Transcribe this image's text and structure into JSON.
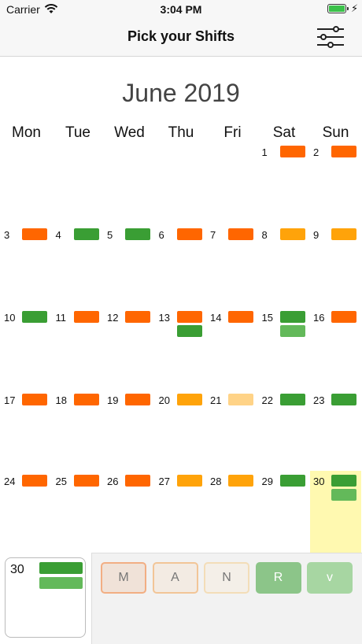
{
  "status": {
    "carrier": "Carrier",
    "time": "3:04 PM"
  },
  "nav": {
    "title": "Pick your Shifts",
    "filter_icon": "sliders-icon"
  },
  "calendar": {
    "month": "June 2019",
    "weekdays": [
      "Mon",
      "Tue",
      "Wed",
      "Thu",
      "Fri",
      "Sat",
      "Sun"
    ],
    "colors": {
      "orange": "#ff6600",
      "amber": "#ffa30a",
      "peach": "#ffd387",
      "green": "#3a9e34",
      "lightgreen": "#63b95a",
      "today": "#fff9b0"
    },
    "days": [
      {
        "d": "1",
        "shifts": [
          "orange"
        ]
      },
      {
        "d": "2",
        "shifts": [
          "orange"
        ]
      },
      {
        "d": "3",
        "shifts": [
          "orange"
        ]
      },
      {
        "d": "4",
        "shifts": [
          "green"
        ]
      },
      {
        "d": "5",
        "shifts": [
          "green"
        ]
      },
      {
        "d": "6",
        "shifts": [
          "orange"
        ]
      },
      {
        "d": "7",
        "shifts": [
          "orange"
        ]
      },
      {
        "d": "8",
        "shifts": [
          "amber"
        ]
      },
      {
        "d": "9",
        "shifts": [
          "amber"
        ]
      },
      {
        "d": "10",
        "shifts": [
          "green"
        ]
      },
      {
        "d": "11",
        "shifts": [
          "orange"
        ]
      },
      {
        "d": "12",
        "shifts": [
          "orange"
        ]
      },
      {
        "d": "13",
        "shifts": [
          "orange",
          "green"
        ]
      },
      {
        "d": "14",
        "shifts": [
          "orange"
        ]
      },
      {
        "d": "15",
        "shifts": [
          "green",
          "lightgreen"
        ]
      },
      {
        "d": "16",
        "shifts": [
          "orange"
        ]
      },
      {
        "d": "17",
        "shifts": [
          "orange"
        ]
      },
      {
        "d": "18",
        "shifts": [
          "orange"
        ]
      },
      {
        "d": "19",
        "shifts": [
          "orange"
        ]
      },
      {
        "d": "20",
        "shifts": [
          "amber"
        ]
      },
      {
        "d": "21",
        "shifts": [
          "peach"
        ]
      },
      {
        "d": "22",
        "shifts": [
          "green"
        ]
      },
      {
        "d": "23",
        "shifts": [
          "green"
        ]
      },
      {
        "d": "24",
        "shifts": [
          "orange"
        ]
      },
      {
        "d": "25",
        "shifts": [
          "orange"
        ]
      },
      {
        "d": "26",
        "shifts": [
          "orange"
        ]
      },
      {
        "d": "27",
        "shifts": [
          "amber"
        ]
      },
      {
        "d": "28",
        "shifts": [
          "amber"
        ]
      },
      {
        "d": "29",
        "shifts": [
          "green"
        ]
      },
      {
        "d": "30",
        "shifts": [
          "green",
          "lightgreen"
        ],
        "today": true
      }
    ],
    "first_weekday_index": 5
  },
  "detail": {
    "day": "30",
    "shifts": [
      "green",
      "lightgreen"
    ]
  },
  "picker": {
    "buttons": [
      {
        "label": "M",
        "bg": "#f0e2d8",
        "border": "#f2ae83",
        "color": "#777"
      },
      {
        "label": "A",
        "bg": "#f3ebe3",
        "border": "#f2c597",
        "color": "#777"
      },
      {
        "label": "N",
        "bg": "#f4efe8",
        "border": "#f3ddb8",
        "color": "#777"
      },
      {
        "label": "R",
        "bg": "#8cc589",
        "border": "#8cc589",
        "color": "#fff"
      },
      {
        "label": "v",
        "bg": "#a7d6a2",
        "border": "#a7d6a2",
        "color": "#fff"
      }
    ]
  }
}
